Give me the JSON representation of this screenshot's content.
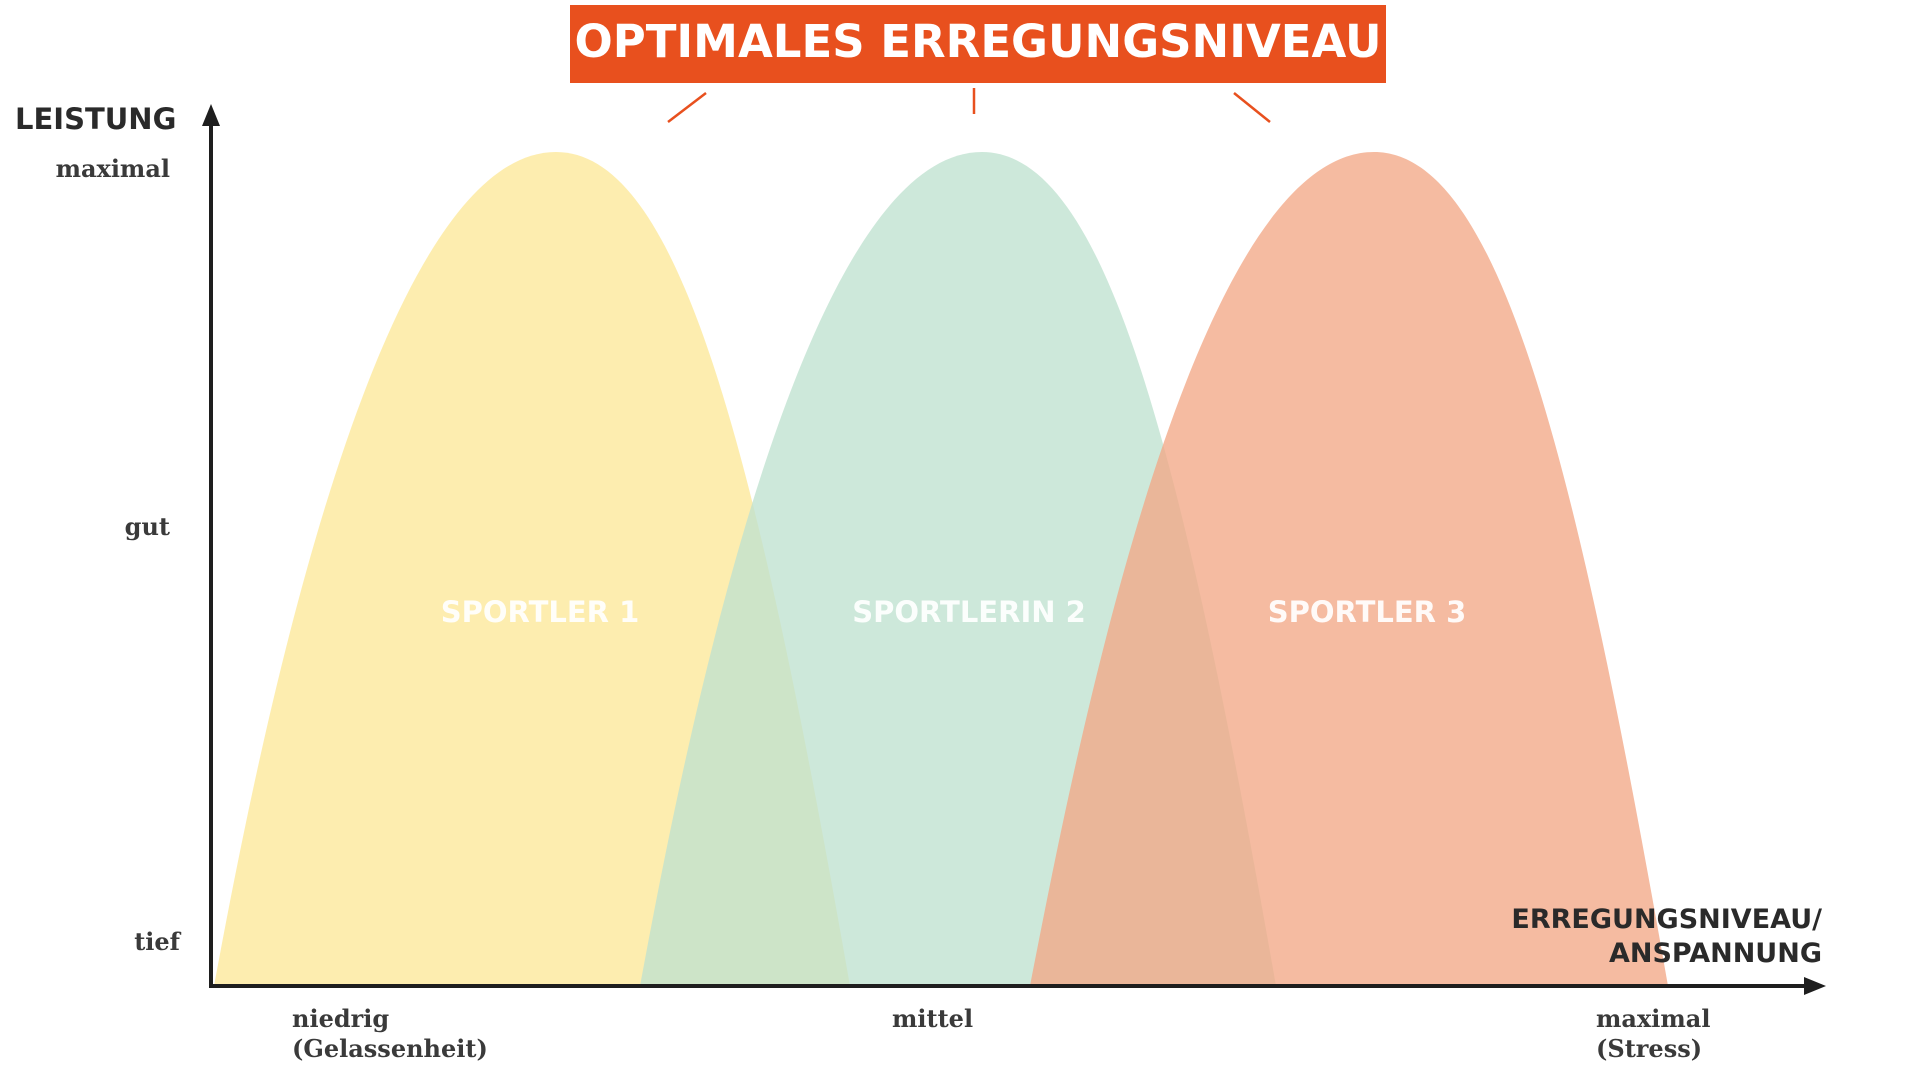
{
  "banner": {
    "text": "OPTIMALES ERREGUNGSNIVEAU",
    "color": "#e8501e"
  },
  "y_axis": {
    "title": "LEISTUNG",
    "levels": [
      "maximal",
      "gut",
      "tief"
    ]
  },
  "x_axis": {
    "title_line1": "ERREGUNGSNIVEAU/",
    "title_line2": "ANSPANNUNG",
    "ticks": [
      {
        "line1": "niedrig",
        "line2": "(Gelassenheit)"
      },
      {
        "line1": "mittel",
        "line2": ""
      },
      {
        "line1": "maximal",
        "line2": "(Stress)"
      }
    ]
  },
  "curves": [
    {
      "label": "SPORTLER 1",
      "color": "#fde99e"
    },
    {
      "label": "SPORTLERIN 2",
      "color": "#bfe1cf"
    },
    {
      "label": "SPORTLER 3",
      "color": "#f2a887"
    }
  ]
}
